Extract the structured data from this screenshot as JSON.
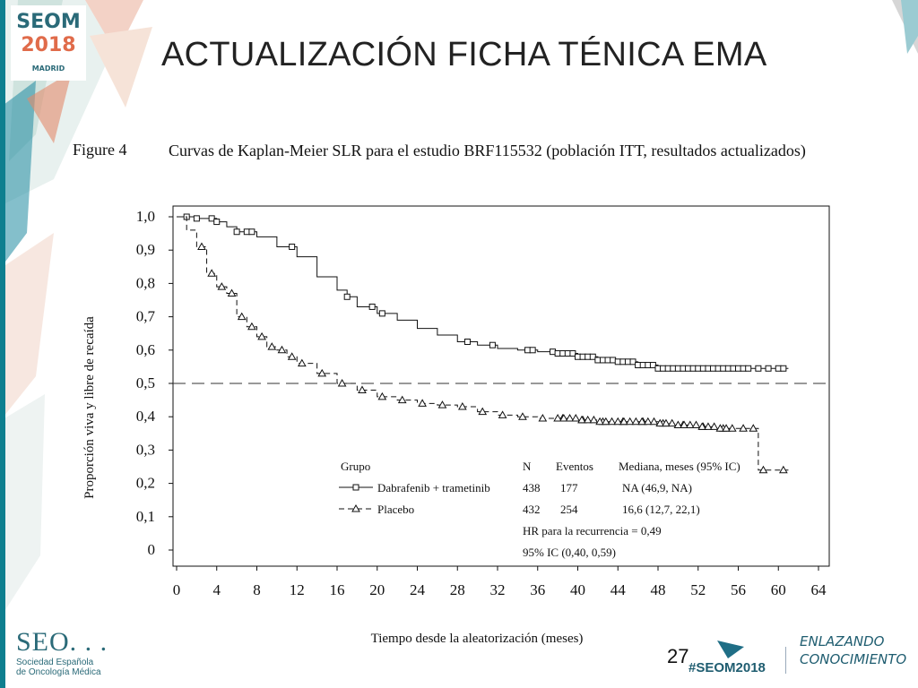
{
  "slide": {
    "title": "ACTUALIZACIÓN FICHA TÉNICA EMA",
    "page_number": "27",
    "hashtag": "#SEOM2018"
  },
  "logo_seom": {
    "line1": "SEOM",
    "line2": "2018",
    "line3": "MADRID"
  },
  "logo_seo": {
    "name": "SEO. . .",
    "line1": "Sociedad Española",
    "line2": "de Oncología Médica"
  },
  "slogan": {
    "line1": "ENLAZANDO",
    "line2": "CONOCIMIENTO"
  },
  "figure": {
    "label": "Figure 4",
    "caption": "Curvas de Kaplan-Meier SLR para el estudio BRF115532 (población ITT, resultados actualizados)"
  },
  "chart_data": {
    "type": "line",
    "title": "",
    "xlabel": "Tiempo desde la aleatorización (meses)",
    "ylabel": "Proporción viva y libre de recaída",
    "xlim": [
      0,
      64
    ],
    "ylim": [
      0,
      1.0
    ],
    "xticks": [
      "0",
      "4",
      "8",
      "12",
      "16",
      "20",
      "24",
      "28",
      "32",
      "36",
      "40",
      "44",
      "48",
      "52",
      "56",
      "60",
      "64"
    ],
    "yticks": [
      "0",
      "0,1",
      "0,2",
      "0,3",
      "0,4",
      "0,5",
      "0,6",
      "0,7",
      "0,8",
      "0,9",
      "1,0"
    ],
    "reference_line_y": 0.5,
    "series": [
      {
        "name": "Dabrafenib + trametinib",
        "marker": "square",
        "line": "solid",
        "x": [
          0,
          2,
          4,
          5,
          6,
          8,
          10,
          12,
          14,
          16,
          17,
          18,
          20,
          22,
          24,
          26,
          28,
          30,
          32,
          34,
          36,
          38,
          40,
          42,
          44,
          46,
          48,
          50,
          52,
          54,
          56,
          58,
          60,
          61
        ],
        "y": [
          1.0,
          0.995,
          0.985,
          0.97,
          0.955,
          0.94,
          0.91,
          0.88,
          0.82,
          0.78,
          0.76,
          0.73,
          0.71,
          0.69,
          0.665,
          0.645,
          0.625,
          0.615,
          0.605,
          0.6,
          0.595,
          0.59,
          0.58,
          0.57,
          0.565,
          0.555,
          0.545,
          0.545,
          0.545,
          0.545,
          0.545,
          0.545,
          0.545,
          0.545
        ],
        "censor_x": [
          1,
          2,
          3.5,
          4,
          6,
          7,
          7.5,
          11.5,
          17,
          19.5,
          20.5,
          29,
          31.5,
          35,
          35.5,
          37.5,
          38,
          38.5,
          39,
          39.5,
          40,
          40.5,
          41,
          41.5,
          42,
          42.5,
          43,
          43.5,
          44,
          44.5,
          45,
          45.5,
          46,
          46.5,
          47,
          47.5,
          48,
          48.5,
          49,
          49.5,
          50,
          50.5,
          51,
          51.5,
          52,
          52.5,
          53,
          53.5,
          54,
          54.5,
          55,
          55.5,
          56,
          56.5,
          57,
          58,
          59,
          60,
          60.5
        ]
      },
      {
        "name": "Placebo",
        "marker": "triangle",
        "line": "dashed",
        "x": [
          0,
          1,
          2,
          3,
          4,
          5,
          6,
          7,
          8,
          9,
          10,
          11,
          12,
          14,
          16,
          18,
          20,
          22,
          24,
          26,
          28,
          30,
          32,
          34,
          36,
          38,
          40,
          42,
          44,
          46,
          48,
          50,
          52,
          54,
          56,
          57,
          58,
          60,
          61
        ],
        "y": [
          1.0,
          0.96,
          0.91,
          0.83,
          0.79,
          0.77,
          0.7,
          0.67,
          0.64,
          0.61,
          0.6,
          0.58,
          0.56,
          0.53,
          0.5,
          0.48,
          0.46,
          0.45,
          0.44,
          0.435,
          0.43,
          0.415,
          0.405,
          0.4,
          0.395,
          0.395,
          0.39,
          0.385,
          0.385,
          0.385,
          0.38,
          0.375,
          0.37,
          0.365,
          0.365,
          0.365,
          0.24,
          0.24,
          0.24
        ]
      }
    ],
    "legend": {
      "header": {
        "group": "Grupo",
        "n": "N",
        "events": "Eventos",
        "median": "Mediana,  meses (95% IC)"
      },
      "rows": [
        {
          "group": "Dabrafenib + trametinib",
          "n": "438",
          "events": "177",
          "median": "NA (46,9, NA)"
        },
        {
          "group": "Placebo",
          "n": "432",
          "events": "254",
          "median": "16,6 (12,7, 22,1)"
        }
      ],
      "hr": "HR para la recurrencia = 0,49",
      "ci": "95% IC (0,40, 0,59)"
    }
  }
}
